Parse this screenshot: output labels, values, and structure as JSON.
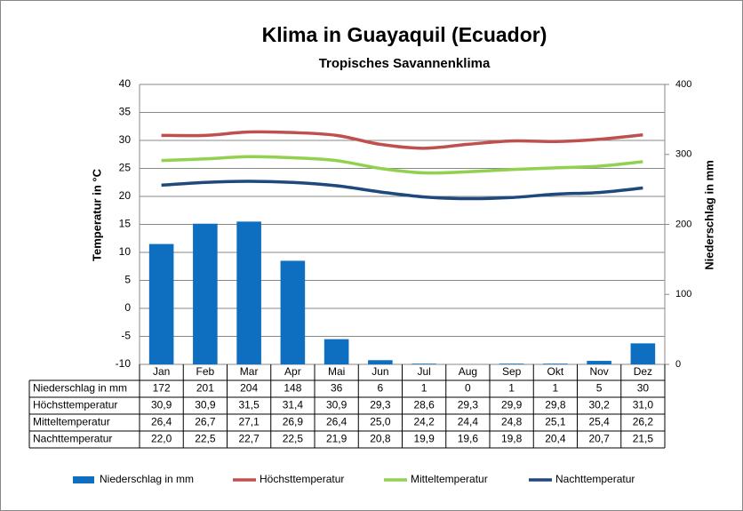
{
  "chart_data": {
    "type": "bar",
    "title": "Klima in Guayaquil (Ecuador)",
    "subtitle": "Tropisches Savannenklima",
    "y_label": "Temperatur in °C",
    "y2_label": "Niederschlag in mm",
    "categories": [
      "Jan",
      "Feb",
      "Mar",
      "Apr",
      "Mai",
      "Jun",
      "Jul",
      "Aug",
      "Sep",
      "Okt",
      "Nov",
      "Dez"
    ],
    "ylim": [
      -10,
      40
    ],
    "yticks": [
      -10,
      -5,
      0,
      5,
      10,
      15,
      20,
      25,
      30,
      35,
      40
    ],
    "y2lim": [
      0,
      400
    ],
    "y2ticks": [
      0,
      100,
      200,
      300,
      400
    ],
    "grid": true,
    "legend": "bottom",
    "series": [
      {
        "name": "Niederschlag in mm",
        "type": "bar",
        "axis": "y2",
        "color": "#0e6ebf",
        "values": [
          172,
          201,
          204,
          148,
          36,
          6,
          1,
          0,
          1,
          1,
          5,
          30
        ]
      },
      {
        "name": "Höchsttemperatur",
        "type": "line",
        "color": "#c0504d",
        "values": [
          30.9,
          30.9,
          31.5,
          31.4,
          30.9,
          29.3,
          28.6,
          29.3,
          29.9,
          29.8,
          30.2,
          31.0
        ],
        "value_labels": [
          "30,9",
          "30,9",
          "31,5",
          "31,4",
          "30,9",
          "29,3",
          "28,6",
          "29,3",
          "29,9",
          "29,8",
          "30,2",
          "31,0"
        ]
      },
      {
        "name": "Mitteltemperatur",
        "type": "line",
        "color": "#92d050",
        "values": [
          26.4,
          26.7,
          27.1,
          26.9,
          26.4,
          25.0,
          24.2,
          24.4,
          24.8,
          25.1,
          25.4,
          26.2
        ],
        "value_labels": [
          "26,4",
          "26,7",
          "27,1",
          "26,9",
          "26,4",
          "25,0",
          "24,2",
          "24,4",
          "24,8",
          "25,1",
          "25,4",
          "26,2"
        ]
      },
      {
        "name": "Nachttemperatur",
        "type": "line",
        "color": "#1f497d",
        "values": [
          22.0,
          22.5,
          22.7,
          22.5,
          21.9,
          20.8,
          19.9,
          19.6,
          19.8,
          20.4,
          20.7,
          21.5
        ],
        "value_labels": [
          "22,0",
          "22,5",
          "22,7",
          "22,5",
          "21,9",
          "20,8",
          "19,9",
          "19,6",
          "19,8",
          "20,4",
          "20,7",
          "21,5"
        ]
      }
    ]
  }
}
